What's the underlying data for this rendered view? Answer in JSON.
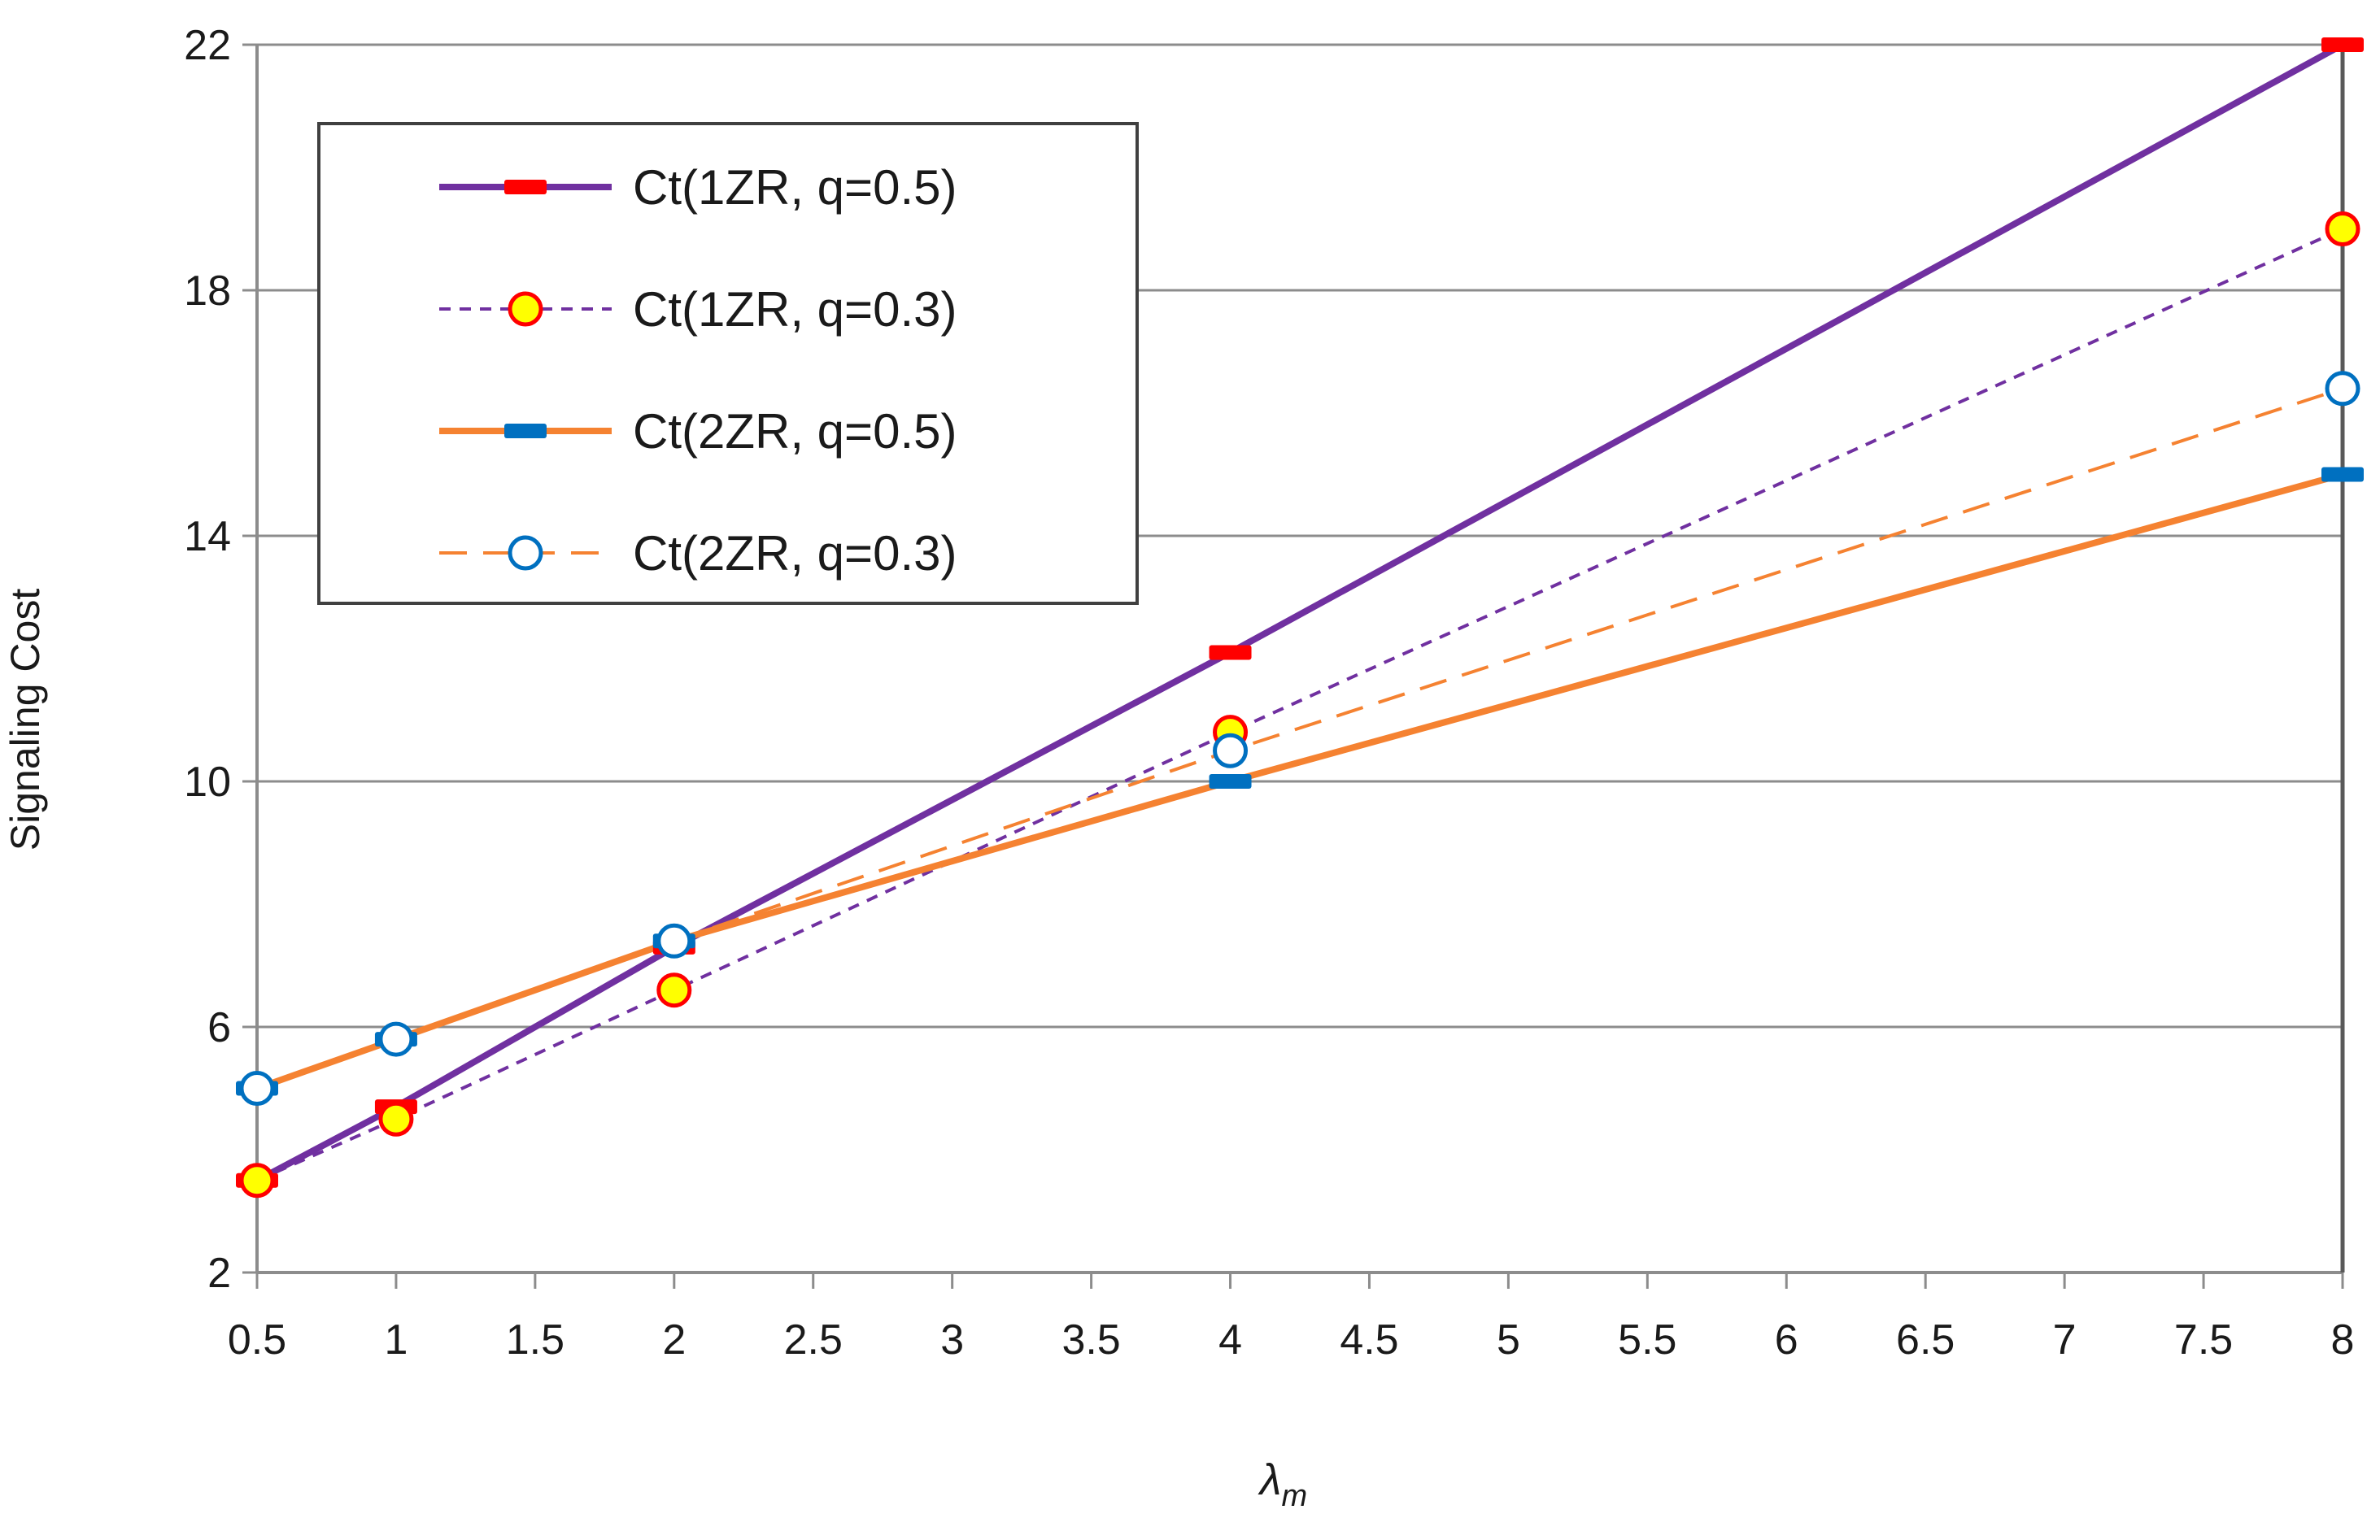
{
  "chart_data": {
    "type": "line",
    "title": "",
    "xlabel": "λ",
    "xlabel_sub": "m",
    "ylabel": "Signaling Cost",
    "xlim": [
      0.5,
      8
    ],
    "ylim": [
      2,
      22
    ],
    "x_ticks": [
      0.5,
      1,
      1.5,
      2,
      2.5,
      3,
      3.5,
      4,
      4.5,
      5,
      5.5,
      6,
      6.5,
      7,
      7.5,
      8
    ],
    "x_tick_labels": [
      "0.5",
      "1",
      "1.5",
      "2",
      "2.5",
      "3",
      "3.5",
      "4",
      "4.5",
      "5",
      "5.5",
      "6",
      "6.5",
      "7",
      "7.5",
      "8"
    ],
    "y_ticks": [
      2,
      6,
      10,
      14,
      18,
      22
    ],
    "y_tick_labels": [
      "2",
      "6",
      "10",
      "14",
      "18",
      "22"
    ],
    "grid": "horizontal",
    "legend_position": "top-left",
    "x": [
      0.5,
      1,
      2,
      4,
      8
    ],
    "series": [
      {
        "name": "Ct(1ZR, q=0.5)",
        "values": [
          3.5,
          4.7,
          7.3,
          12.1,
          22.0
        ],
        "color": "#7030A0",
        "marker_color": "#FF0000",
        "marker": "dash",
        "line": "solid"
      },
      {
        "name": "Ct(1ZR, q=0.3)",
        "values": [
          3.5,
          4.5,
          6.6,
          10.8,
          19.0
        ],
        "color": "#7030A0",
        "marker_color": "#FFFF00",
        "marker_edge": "#FF0000",
        "marker": "circle",
        "line": "dotted"
      },
      {
        "name": "Ct(2ZR, q=0.5)",
        "values": [
          5.0,
          5.8,
          7.4,
          10.0,
          15.0
        ],
        "color": "#F58231",
        "marker_color": "#0070C0",
        "marker": "dash",
        "line": "solid"
      },
      {
        "name": "Ct(2ZR, q=0.3)",
        "values": [
          5.0,
          5.8,
          7.4,
          10.5,
          16.4
        ],
        "color": "#F58231",
        "marker_color": "#FFFFFF",
        "marker_edge": "#0070C0",
        "marker": "circle",
        "line": "dashed"
      }
    ]
  }
}
